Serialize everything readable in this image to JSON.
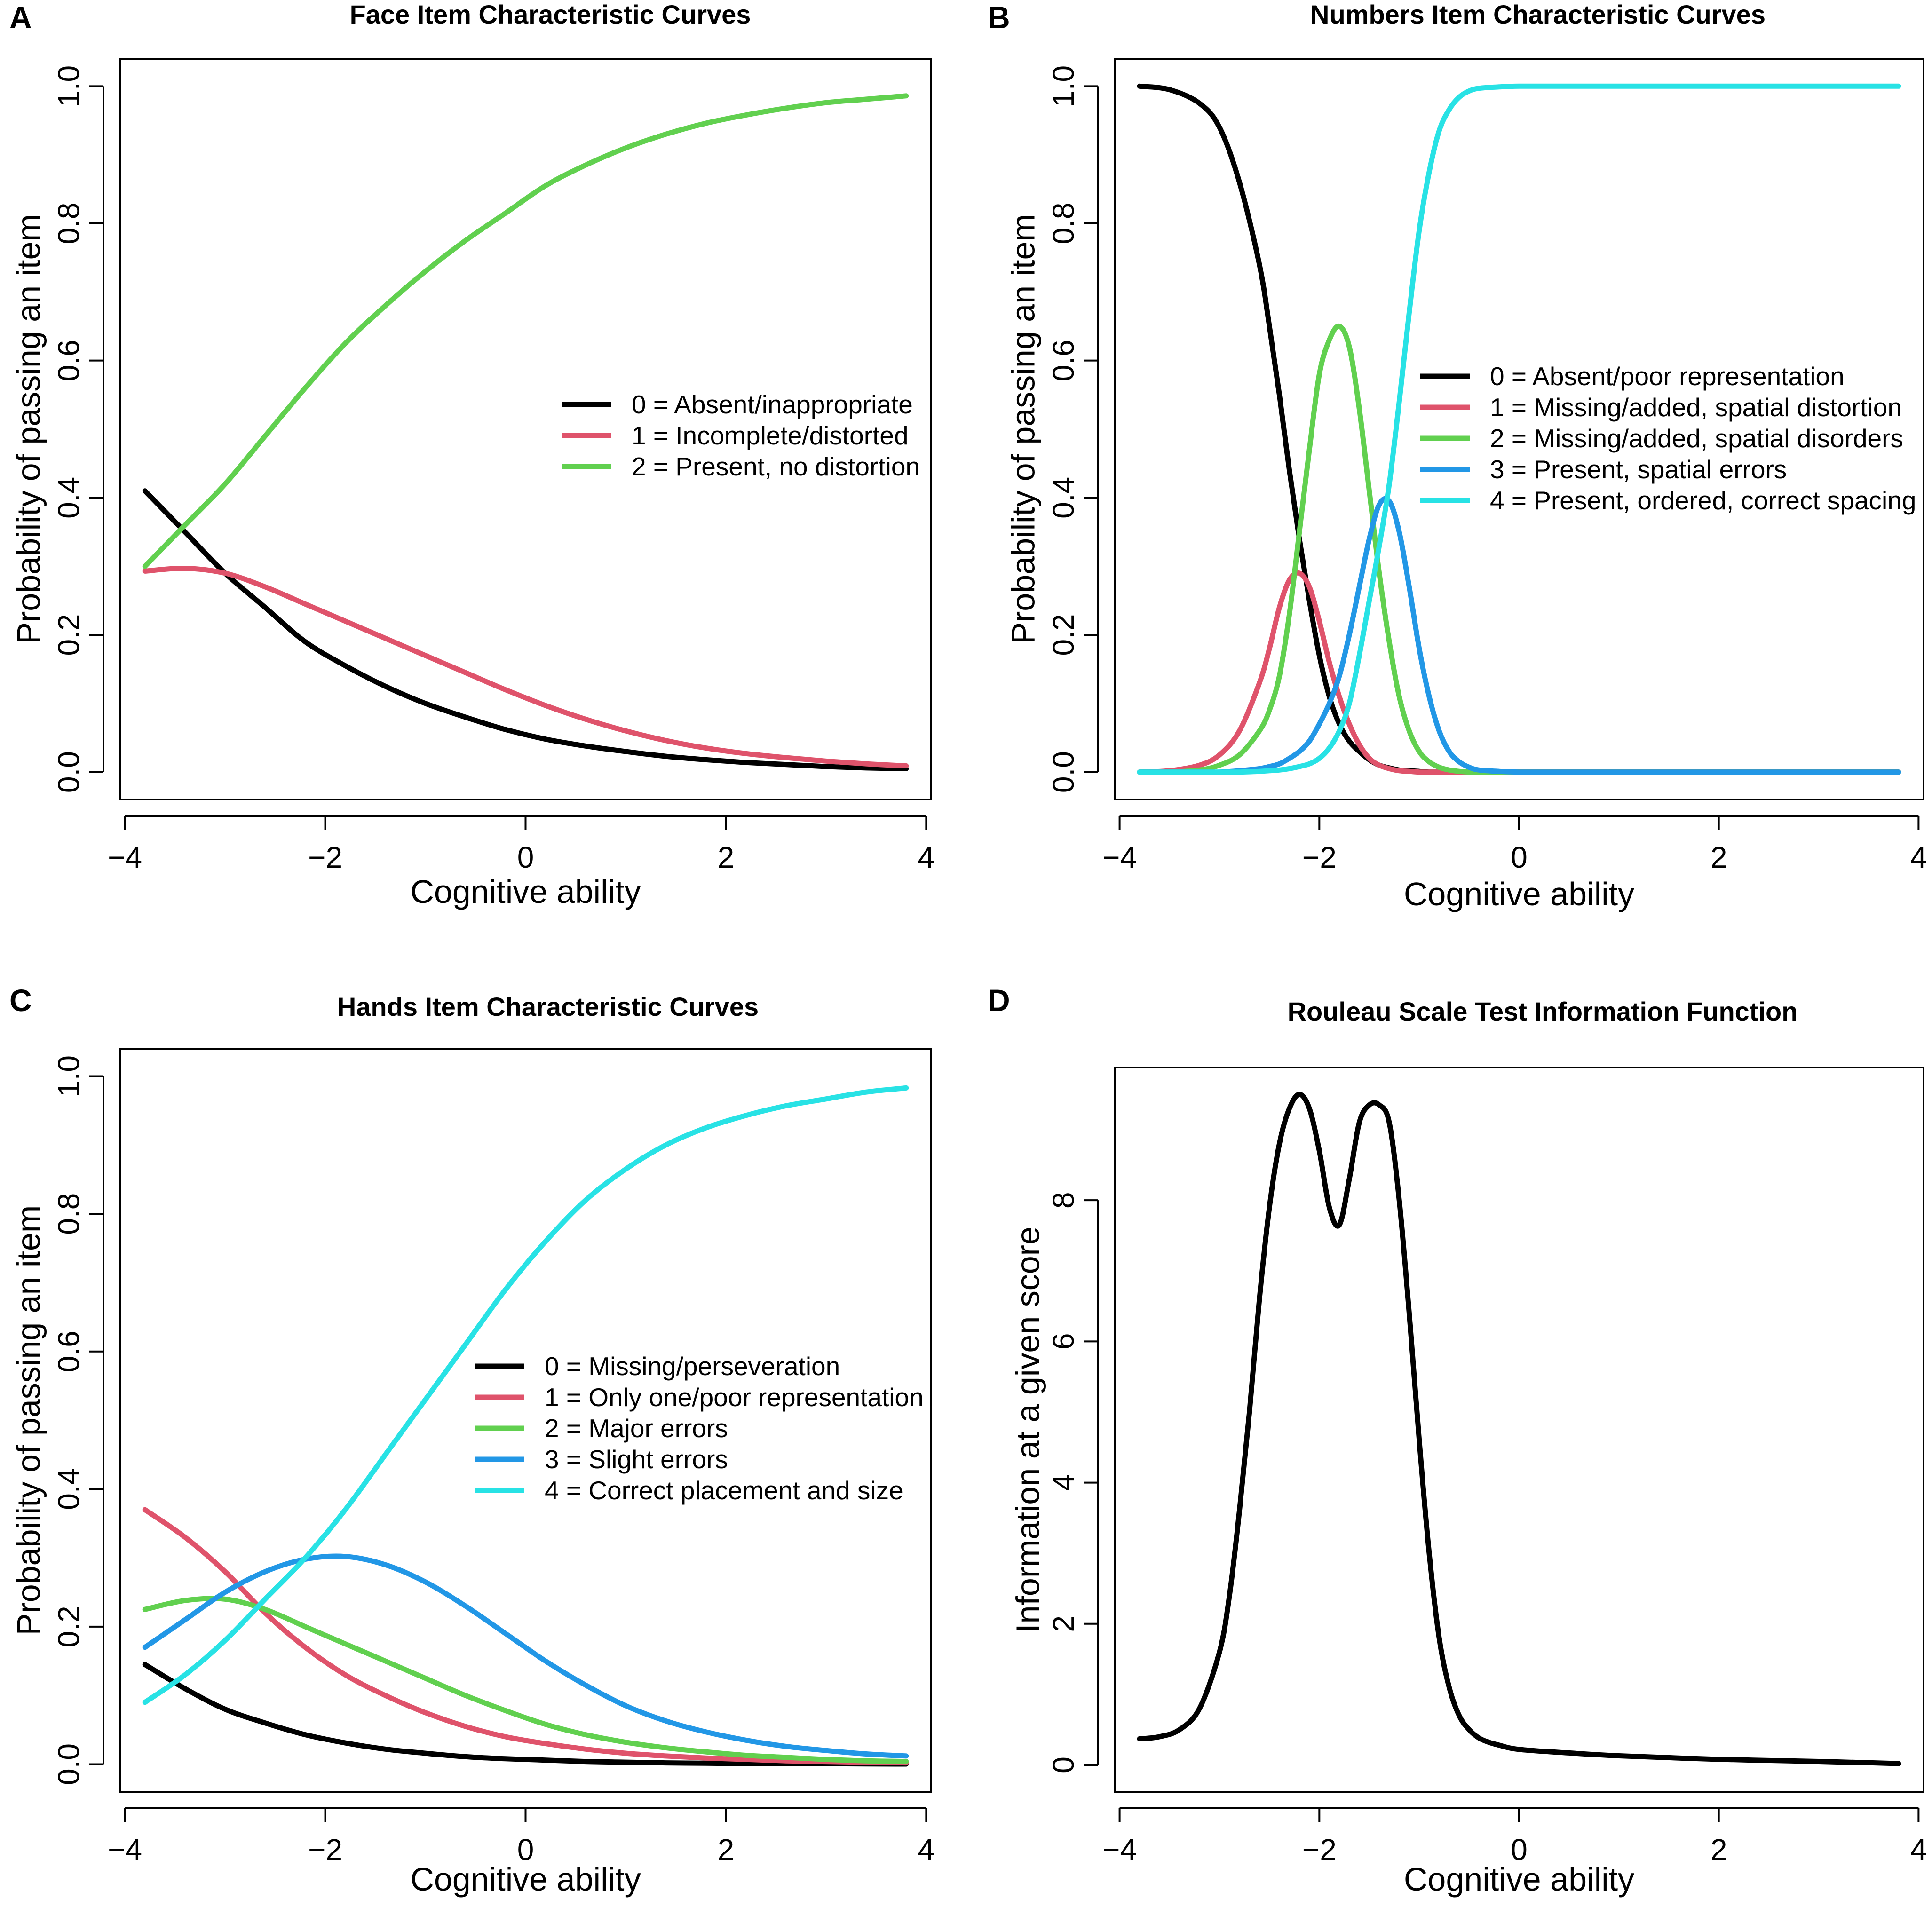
{
  "colors": {
    "0": "#000000",
    "1": "#DF536B",
    "2": "#61D04F",
    "3": "#2297E6",
    "4": "#28E2E5"
  },
  "chart_data": [
    {
      "id": "A",
      "letter": "A",
      "type": "line",
      "title": "Face Item Characteristic Curves",
      "xlabel": "Cognitive ability",
      "ylabel": "Probability of passing an item",
      "xlim": [
        -3.8,
        3.8
      ],
      "ylim": [
        0,
        1
      ],
      "xticks": [
        -4,
        -2,
        0,
        2,
        4
      ],
      "xtick_labels": [
        "−4",
        "−2",
        "0",
        "2",
        "4"
      ],
      "yticks": [
        0,
        0.2,
        0.4,
        0.6,
        0.8,
        1.0
      ],
      "ytick_labels": [
        "0.0",
        "0.2",
        "0.4",
        "0.6",
        "0.8",
        "1.0"
      ],
      "legend_position": "center-right",
      "x": [
        -3.8,
        -3.4,
        -3.0,
        -2.6,
        -2.2,
        -1.8,
        -1.4,
        -1.0,
        -0.6,
        -0.2,
        0.2,
        0.6,
        1.0,
        1.4,
        1.8,
        2.2,
        2.6,
        3.0,
        3.4,
        3.8
      ],
      "series": [
        {
          "name": "0 = Absent/inappropriate",
          "color_key": "0",
          "values": [
            0.41,
            0.35,
            0.29,
            0.24,
            0.19,
            0.155,
            0.125,
            0.1,
            0.08,
            0.062,
            0.048,
            0.038,
            0.03,
            0.023,
            0.018,
            0.014,
            0.011,
            0.008,
            0.006,
            0.005
          ]
        },
        {
          "name": "1 = Incomplete/distorted",
          "color_key": "1",
          "values": [
            0.293,
            0.297,
            0.29,
            0.27,
            0.245,
            0.22,
            0.195,
            0.17,
            0.145,
            0.12,
            0.097,
            0.077,
            0.06,
            0.046,
            0.035,
            0.027,
            0.021,
            0.016,
            0.012,
            0.009
          ]
        },
        {
          "name": "2 = Present, no distortion",
          "color_key": "2",
          "values": [
            0.3,
            0.36,
            0.42,
            0.49,
            0.56,
            0.625,
            0.68,
            0.73,
            0.775,
            0.815,
            0.855,
            0.885,
            0.91,
            0.93,
            0.946,
            0.958,
            0.968,
            0.976,
            0.981,
            0.986
          ]
        }
      ]
    },
    {
      "id": "B",
      "letter": "B",
      "type": "line",
      "title": "Numbers Item Characteristic Curves",
      "xlabel": "Cognitive ability",
      "ylabel": "Probability of passing an item",
      "xlim": [
        -3.8,
        3.8
      ],
      "ylim": [
        0,
        1
      ],
      "xticks": [
        -4,
        -2,
        0,
        2,
        4
      ],
      "xtick_labels": [
        "−4",
        "−2",
        "0",
        "2",
        "4"
      ],
      "yticks": [
        0,
        0.2,
        0.4,
        0.6,
        0.8,
        1.0
      ],
      "ytick_labels": [
        "0.0",
        "0.2",
        "0.4",
        "0.6",
        "0.8",
        "1.0"
      ],
      "legend_position": "center-right",
      "x": [
        -3.8,
        -3.5,
        -3.2,
        -3.0,
        -2.8,
        -2.6,
        -2.5,
        -2.4,
        -2.3,
        -2.2,
        -2.1,
        -2.0,
        -1.9,
        -1.8,
        -1.7,
        -1.6,
        -1.5,
        -1.4,
        -1.3,
        -1.2,
        -1.1,
        -1.0,
        -0.9,
        -0.8,
        -0.7,
        -0.6,
        -0.5,
        -0.4,
        -0.2,
        0.0,
        0.5,
        1.0,
        2.0,
        3.0,
        3.8
      ],
      "series": [
        {
          "name": "0 = Absent/poor representation",
          "color_key": "0",
          "values": [
            1.0,
            0.995,
            0.975,
            0.94,
            0.86,
            0.74,
            0.65,
            0.55,
            0.44,
            0.34,
            0.25,
            0.17,
            0.11,
            0.07,
            0.045,
            0.03,
            0.018,
            0.01,
            0.006,
            0.003,
            0.002,
            0.001,
            0.0,
            0.0,
            0.0,
            0.0,
            0.0,
            0.0,
            0.0,
            0.0,
            0.0,
            0.0,
            0.0,
            0.0,
            0.0
          ]
        },
        {
          "name": "1 = Missing/added, spatial distortion",
          "color_key": "1",
          "values": [
            0.0,
            0.002,
            0.01,
            0.025,
            0.06,
            0.13,
            0.18,
            0.24,
            0.28,
            0.29,
            0.27,
            0.22,
            0.16,
            0.11,
            0.07,
            0.04,
            0.02,
            0.01,
            0.005,
            0.002,
            0.001,
            0.0,
            0.0,
            0.0,
            0.0,
            0.0,
            0.0,
            0.0,
            0.0,
            0.0,
            0.0,
            0.0,
            0.0,
            0.0,
            0.0
          ]
        },
        {
          "name": "2 = Missing/added, spatial disorders",
          "color_key": "2",
          "values": [
            0.0,
            0.0,
            0.003,
            0.01,
            0.025,
            0.06,
            0.09,
            0.14,
            0.23,
            0.35,
            0.47,
            0.58,
            0.63,
            0.65,
            0.62,
            0.53,
            0.41,
            0.29,
            0.19,
            0.11,
            0.06,
            0.03,
            0.015,
            0.007,
            0.003,
            0.001,
            0.0,
            0.0,
            0.0,
            0.0,
            0.0,
            0.0,
            0.0,
            0.0,
            0.0
          ]
        },
        {
          "name": "3 = Present, spatial errors",
          "color_key": "3",
          "values": [
            0.0,
            0.0,
            0.0,
            0.0,
            0.002,
            0.005,
            0.008,
            0.012,
            0.02,
            0.03,
            0.045,
            0.07,
            0.1,
            0.14,
            0.2,
            0.27,
            0.34,
            0.39,
            0.395,
            0.35,
            0.27,
            0.18,
            0.11,
            0.06,
            0.03,
            0.015,
            0.007,
            0.003,
            0.001,
            0.0,
            0.0,
            0.0,
            0.0,
            0.0,
            0.0
          ]
        },
        {
          "name": "4 = Present, ordered, correct spacing",
          "color_key": "4",
          "values": [
            0.0,
            0.0,
            0.0,
            0.0,
            0.0,
            0.001,
            0.002,
            0.003,
            0.005,
            0.008,
            0.012,
            0.02,
            0.035,
            0.06,
            0.1,
            0.17,
            0.25,
            0.33,
            0.42,
            0.54,
            0.67,
            0.79,
            0.875,
            0.935,
            0.966,
            0.984,
            0.993,
            0.997,
            0.999,
            1.0,
            1.0,
            1.0,
            1.0,
            1.0,
            1.0
          ]
        }
      ]
    },
    {
      "id": "C",
      "letter": "C",
      "type": "line",
      "title": "Hands Item Characteristic Curves",
      "xlabel": "Cognitive ability",
      "ylabel": "Probability of passing an item",
      "xlim": [
        -3.8,
        3.8
      ],
      "ylim": [
        0,
        1
      ],
      "xticks": [
        -4,
        -2,
        0,
        2,
        4
      ],
      "xtick_labels": [
        "−4",
        "−2",
        "0",
        "2",
        "4"
      ],
      "yticks": [
        0,
        0.2,
        0.4,
        0.6,
        0.8,
        1.0
      ],
      "ytick_labels": [
        "0.0",
        "0.2",
        "0.4",
        "0.6",
        "0.8",
        "1.0"
      ],
      "legend_position": "center-right",
      "x": [
        -3.8,
        -3.4,
        -3.0,
        -2.6,
        -2.2,
        -1.8,
        -1.4,
        -1.0,
        -0.6,
        -0.2,
        0.2,
        0.6,
        1.0,
        1.4,
        1.8,
        2.2,
        2.6,
        3.0,
        3.4,
        3.8
      ],
      "series": [
        {
          "name": "0 = Missing/perseveration",
          "color_key": "0",
          "values": [
            0.145,
            0.11,
            0.08,
            0.06,
            0.043,
            0.031,
            0.022,
            0.016,
            0.011,
            0.008,
            0.006,
            0.004,
            0.003,
            0.002,
            0.0015,
            0.001,
            0.001,
            0.0008,
            0.0005,
            0.0003
          ]
        },
        {
          "name": "1 = Only one/poor representation",
          "color_key": "1",
          "values": [
            0.37,
            0.33,
            0.28,
            0.22,
            0.17,
            0.13,
            0.1,
            0.075,
            0.055,
            0.04,
            0.03,
            0.022,
            0.016,
            0.012,
            0.009,
            0.007,
            0.005,
            0.004,
            0.003,
            0.002
          ]
        },
        {
          "name": "2 = Major errors",
          "color_key": "2",
          "values": [
            0.225,
            0.238,
            0.24,
            0.225,
            0.2,
            0.175,
            0.15,
            0.125,
            0.1,
            0.078,
            0.058,
            0.043,
            0.032,
            0.024,
            0.018,
            0.013,
            0.01,
            0.007,
            0.005,
            0.004
          ]
        },
        {
          "name": "3 = Slight errors",
          "color_key": "3",
          "values": [
            0.17,
            0.21,
            0.25,
            0.28,
            0.298,
            0.302,
            0.29,
            0.265,
            0.23,
            0.19,
            0.15,
            0.115,
            0.085,
            0.063,
            0.047,
            0.035,
            0.026,
            0.02,
            0.015,
            0.012
          ]
        },
        {
          "name": "4 = Correct placement and size",
          "color_key": "4",
          "values": [
            0.09,
            0.13,
            0.18,
            0.24,
            0.3,
            0.37,
            0.45,
            0.53,
            0.61,
            0.69,
            0.76,
            0.82,
            0.865,
            0.9,
            0.925,
            0.943,
            0.957,
            0.967,
            0.977,
            0.983
          ]
        }
      ]
    },
    {
      "id": "D",
      "letter": "D",
      "type": "line",
      "title": "Rouleau Scale Test Information Function",
      "xlabel": "Cognitive ability",
      "ylabel": "Information at a given score",
      "xlim": [
        -3.8,
        3.8
      ],
      "ylim": [
        0,
        9.5
      ],
      "xticks": [
        -4,
        -2,
        0,
        2,
        4
      ],
      "xtick_labels": [
        "−4",
        "−2",
        "0",
        "2",
        "4"
      ],
      "yticks": [
        0,
        2,
        4,
        6,
        8
      ],
      "ytick_labels": [
        "0",
        "2",
        "4",
        "6",
        "8"
      ],
      "legend_position": "none",
      "x": [
        -3.8,
        -3.6,
        -3.4,
        -3.2,
        -3.0,
        -2.9,
        -2.8,
        -2.7,
        -2.6,
        -2.5,
        -2.4,
        -2.3,
        -2.2,
        -2.1,
        -2.0,
        -1.9,
        -1.8,
        -1.7,
        -1.6,
        -1.5,
        -1.4,
        -1.3,
        -1.2,
        -1.1,
        -1.0,
        -0.9,
        -0.8,
        -0.7,
        -0.6,
        -0.5,
        -0.4,
        -0.3,
        -0.2,
        0.0,
        0.5,
        1.0,
        2.0,
        3.0,
        3.8
      ],
      "series": [
        {
          "name": "Information",
          "color_key": "0",
          "values": [
            0.37,
            0.4,
            0.5,
            0.8,
            1.6,
            2.4,
            3.6,
            5.0,
            6.6,
            7.9,
            8.8,
            9.3,
            9.5,
            9.3,
            8.7,
            7.9,
            7.65,
            8.3,
            9.1,
            9.35,
            9.35,
            9.1,
            8.0,
            6.4,
            4.6,
            3.0,
            1.8,
            1.1,
            0.7,
            0.5,
            0.38,
            0.32,
            0.28,
            0.22,
            0.17,
            0.13,
            0.08,
            0.05,
            0.02
          ]
        }
      ]
    }
  ]
}
